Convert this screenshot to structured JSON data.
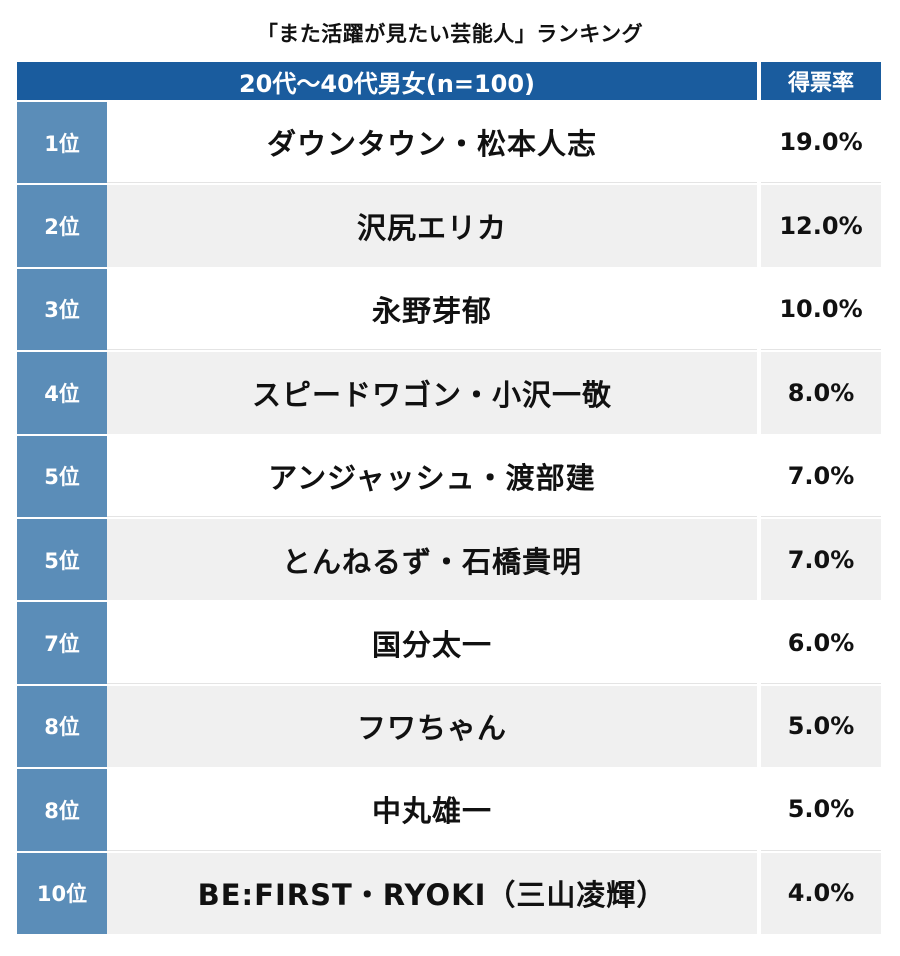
{
  "title": "「また活躍が見たい芸能人」ランキング",
  "header": {
    "segment": "20代〜40代男女(n=100)",
    "rate_label": "得票率"
  },
  "rows": [
    {
      "rank": "1位",
      "name": "ダウンタウン・松本人志",
      "rate": "19.0%"
    },
    {
      "rank": "2位",
      "name": "沢尻エリカ",
      "rate": "12.0%"
    },
    {
      "rank": "3位",
      "name": "永野芽郁",
      "rate": "10.0%"
    },
    {
      "rank": "4位",
      "name": "スピードワゴン・小沢一敬",
      "rate": "8.0%"
    },
    {
      "rank": "5位",
      "name": "アンジャッシュ・渡部建",
      "rate": "7.0%"
    },
    {
      "rank": "5位",
      "name": "とんねるず・石橋貴明",
      "rate": "7.0%"
    },
    {
      "rank": "7位",
      "name": "国分太一",
      "rate": "6.0%"
    },
    {
      "rank": "8位",
      "name": "フワちゃん",
      "rate": "5.0%"
    },
    {
      "rank": "8位",
      "name": "中丸雄一",
      "rate": "5.0%"
    },
    {
      "rank": "10位",
      "name": "BE:FIRST・RYOKI（三山凌輝）",
      "rate": "4.0%"
    }
  ],
  "colors": {
    "header_bg": "#1a5c9e",
    "rank_bg": "#5b8db8",
    "stripe_bg": "#f0f0f0"
  }
}
